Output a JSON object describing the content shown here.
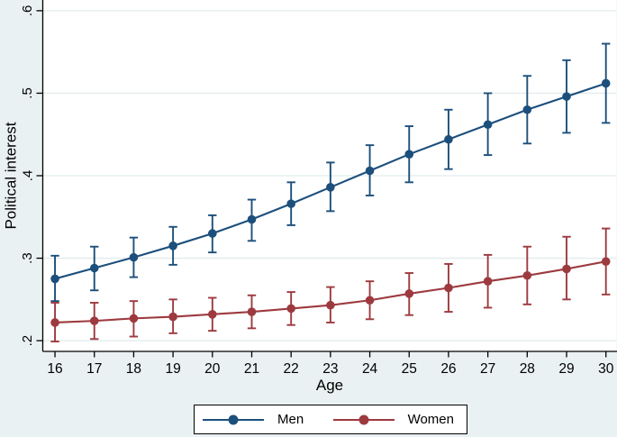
{
  "figure": {
    "background": "#eaf1f2",
    "plot_background": "#ffffff",
    "grid_color": "#e2ecee",
    "axis_color": "#000000",
    "text_color": "#000000"
  },
  "chart_data": {
    "type": "line",
    "title": "",
    "xlabel": "Age",
    "ylabel": "Political interest",
    "x": [
      16,
      17,
      18,
      19,
      20,
      21,
      22,
      23,
      24,
      25,
      26,
      27,
      28,
      29,
      30
    ],
    "x_tick_labels": [
      "16",
      "17",
      "18",
      "19",
      "20",
      "21",
      "22",
      "23",
      "24",
      "25",
      "26",
      "27",
      "28",
      "29",
      "30"
    ],
    "y_tick_labels": [
      ".2",
      ".3",
      ".4",
      ".5",
      ".6"
    ],
    "y_tick_values": [
      0.2,
      0.3,
      0.4,
      0.5,
      0.6
    ],
    "xlim": [
      15.69,
      30.27
    ],
    "ylim": [
      0.187,
      0.613
    ],
    "grid": true,
    "error_bars": true,
    "legend_position": "bottom",
    "series": [
      {
        "name": "Men",
        "color": "#1c4f7c",
        "values": [
          0.275,
          0.288,
          0.301,
          0.315,
          0.33,
          0.347,
          0.366,
          0.386,
          0.406,
          0.426,
          0.444,
          0.462,
          0.48,
          0.496,
          0.512
        ],
        "ci_low": [
          0.248,
          0.261,
          0.277,
          0.292,
          0.307,
          0.321,
          0.34,
          0.357,
          0.376,
          0.392,
          0.408,
          0.425,
          0.439,
          0.452,
          0.464
        ],
        "ci_high": [
          0.303,
          0.314,
          0.325,
          0.338,
          0.352,
          0.371,
          0.392,
          0.416,
          0.437,
          0.46,
          0.48,
          0.5,
          0.521,
          0.54,
          0.56
        ]
      },
      {
        "name": "Women",
        "color": "#9d3a3f",
        "values": [
          0.222,
          0.224,
          0.227,
          0.229,
          0.232,
          0.235,
          0.239,
          0.243,
          0.249,
          0.257,
          0.264,
          0.272,
          0.279,
          0.287,
          0.296
        ],
        "ci_low": [
          0.199,
          0.202,
          0.205,
          0.209,
          0.212,
          0.215,
          0.219,
          0.222,
          0.226,
          0.231,
          0.235,
          0.24,
          0.244,
          0.25,
          0.256
        ],
        "ci_high": [
          0.246,
          0.246,
          0.248,
          0.25,
          0.252,
          0.255,
          0.259,
          0.265,
          0.272,
          0.282,
          0.293,
          0.304,
          0.314,
          0.326,
          0.336
        ]
      }
    ]
  }
}
